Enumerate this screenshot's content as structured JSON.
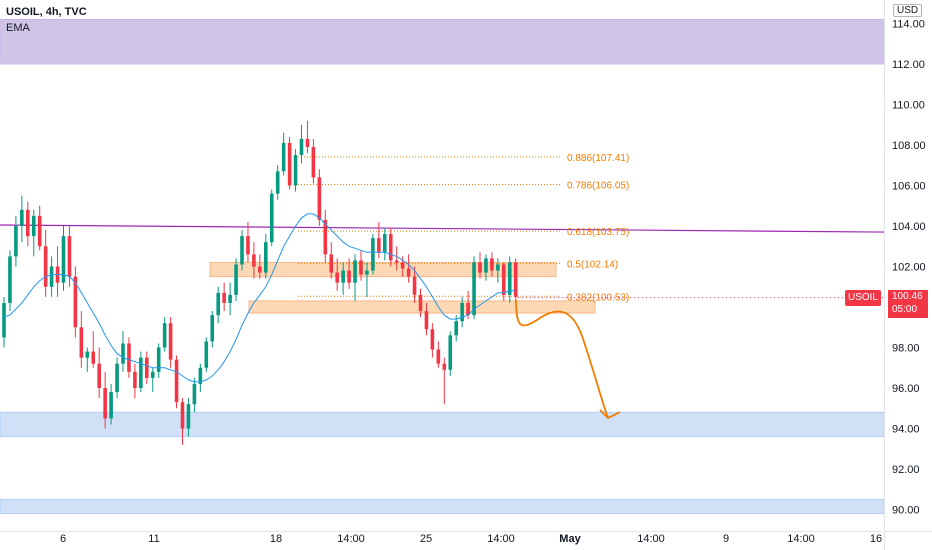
{
  "header": {
    "symbol": "USOIL, 4h, TVC",
    "indicator": "EMA",
    "currency": "USD"
  },
  "price_tag": {
    "symbol": "USOIL",
    "price": "100.46",
    "countdown": "05:00"
  },
  "colors": {
    "up": "#089981",
    "down": "#f23645",
    "ema": "#2196f3",
    "trendline": "#9c27b0",
    "fib": "#f57c00",
    "resistance_zone": "#d1c4e9",
    "support_zone": "#cfe0f7",
    "fib_zone": "#fcd8b4"
  },
  "chart_data": {
    "type": "candlestick",
    "symbol": "USOIL",
    "timeframe": "4h",
    "source": "TVC",
    "y_axis": {
      "min": 89,
      "max": 115,
      "ticks": [
        "114.00",
        "112.00",
        "110.00",
        "108.00",
        "106.00",
        "104.00",
        "102.00",
        "100.00",
        "98.00",
        "96.00",
        "94.00",
        "92.00",
        "90.00"
      ]
    },
    "x_axis": {
      "ticks": [
        "6",
        "11",
        "18",
        "14:00",
        "25",
        "14:00",
        "May",
        "14:00",
        "9",
        "14:00",
        "16"
      ]
    },
    "candles": [
      [
        98.5,
        100.5,
        98.0,
        100.2
      ],
      [
        100.2,
        102.8,
        99.8,
        102.5
      ],
      [
        102.5,
        104.5,
        102.0,
        104.0
      ],
      [
        104.0,
        105.5,
        103.2,
        104.8
      ],
      [
        104.8,
        105.2,
        103.0,
        103.5
      ],
      [
        103.5,
        104.8,
        102.5,
        104.5
      ],
      [
        104.5,
        105.0,
        102.8,
        103.0
      ],
      [
        103.0,
        103.8,
        100.5,
        101.0
      ],
      [
        101.0,
        102.5,
        100.5,
        102.0
      ],
      [
        102.0,
        103.0,
        100.5,
        101.2
      ],
      [
        101.2,
        104.0,
        100.8,
        103.5
      ],
      [
        103.5,
        104.0,
        101.0,
        101.5
      ],
      [
        101.5,
        102.0,
        98.5,
        99.0
      ],
      [
        99.0,
        99.8,
        97.0,
        97.5
      ],
      [
        97.5,
        98.0,
        96.8,
        97.8
      ],
      [
        97.8,
        98.8,
        97.0,
        97.2
      ],
      [
        97.2,
        98.0,
        95.5,
        96.0
      ],
      [
        96.0,
        96.8,
        94.0,
        94.5
      ],
      [
        94.5,
        96.2,
        94.2,
        95.8
      ],
      [
        95.8,
        97.5,
        95.5,
        97.2
      ],
      [
        97.2,
        98.8,
        96.8,
        98.2
      ],
      [
        98.2,
        98.5,
        96.5,
        96.8
      ],
      [
        96.8,
        97.2,
        95.5,
        96.0
      ],
      [
        96.0,
        97.8,
        95.8,
        97.5
      ],
      [
        97.5,
        97.8,
        96.2,
        96.5
      ],
      [
        96.5,
        97.0,
        95.8,
        96.8
      ],
      [
        96.8,
        98.2,
        96.5,
        98.0
      ],
      [
        98.0,
        99.5,
        97.8,
        99.2
      ],
      [
        99.2,
        99.5,
        97.0,
        97.4
      ],
      [
        97.4,
        97.6,
        95.0,
        95.3
      ],
      [
        95.3,
        95.5,
        93.2,
        94.0
      ],
      [
        94.0,
        95.5,
        93.6,
        95.2
      ],
      [
        95.2,
        96.5,
        94.8,
        96.2
      ],
      [
        96.2,
        97.2,
        95.8,
        97.0
      ],
      [
        97.0,
        98.5,
        96.8,
        98.3
      ],
      [
        98.3,
        99.8,
        98.0,
        99.6
      ],
      [
        99.6,
        101.0,
        99.2,
        100.7
      ],
      [
        100.7,
        101.2,
        99.8,
        100.2
      ],
      [
        100.2,
        101.2,
        99.6,
        100.6
      ],
      [
        100.6,
        102.4,
        100.3,
        102.1
      ],
      [
        102.1,
        103.8,
        101.8,
        103.5
      ],
      [
        103.5,
        104.2,
        102.2,
        102.6
      ],
      [
        102.6,
        103.2,
        101.4,
        102.0
      ],
      [
        102.0,
        102.6,
        101.4,
        101.7
      ],
      [
        101.7,
        103.6,
        101.4,
        103.2
      ],
      [
        103.2,
        105.8,
        103.0,
        105.6
      ],
      [
        105.6,
        107.0,
        105.3,
        106.7
      ],
      [
        106.7,
        108.6,
        106.5,
        108.1
      ],
      [
        108.1,
        108.4,
        105.8,
        106.0
      ],
      [
        106.0,
        107.8,
        105.7,
        107.5
      ],
      [
        107.5,
        109.0,
        107.1,
        108.3
      ],
      [
        108.3,
        109.2,
        107.6,
        107.9
      ],
      [
        107.9,
        108.3,
        106.1,
        106.4
      ],
      [
        106.4,
        106.8,
        104.0,
        104.3
      ],
      [
        104.3,
        104.8,
        102.2,
        102.6
      ],
      [
        102.6,
        103.2,
        101.4,
        101.7
      ],
      [
        101.7,
        102.4,
        100.8,
        101.2
      ],
      [
        101.2,
        102.2,
        100.6,
        101.8
      ],
      [
        101.8,
        102.4,
        100.9,
        101.2
      ],
      [
        101.2,
        102.6,
        100.3,
        102.3
      ],
      [
        102.3,
        102.8,
        101.3,
        101.6
      ],
      [
        101.6,
        102.2,
        100.5,
        101.8
      ],
      [
        101.8,
        103.6,
        101.6,
        103.4
      ],
      [
        103.4,
        104.2,
        102.4,
        102.7
      ],
      [
        102.7,
        103.9,
        102.3,
        103.6
      ],
      [
        103.6,
        103.9,
        102.0,
        102.3
      ],
      [
        102.3,
        103.0,
        101.8,
        102.2
      ],
      [
        102.2,
        102.5,
        101.5,
        101.9
      ],
      [
        101.9,
        102.6,
        101.2,
        101.5
      ],
      [
        101.5,
        102.0,
        100.2,
        100.6
      ],
      [
        100.6,
        100.9,
        99.5,
        99.8
      ],
      [
        99.8,
        100.2,
        98.6,
        98.9
      ],
      [
        98.9,
        99.2,
        97.5,
        97.9
      ],
      [
        97.9,
        98.3,
        97.0,
        97.2
      ],
      [
        97.2,
        97.5,
        95.2,
        96.9
      ],
      [
        96.9,
        98.8,
        96.6,
        98.6
      ],
      [
        98.6,
        99.6,
        98.3,
        99.3
      ],
      [
        99.3,
        100.5,
        99.0,
        100.2
      ],
      [
        100.2,
        100.8,
        99.4,
        99.6
      ],
      [
        99.6,
        102.5,
        99.4,
        102.2
      ],
      [
        102.2,
        102.7,
        101.4,
        101.7
      ],
      [
        101.7,
        102.6,
        101.3,
        102.4
      ],
      [
        102.4,
        102.7,
        101.5,
        101.8
      ],
      [
        101.8,
        102.4,
        101.2,
        102.1
      ],
      [
        102.1,
        102.2,
        100.3,
        100.6
      ],
      [
        100.6,
        102.5,
        100.2,
        102.2
      ],
      [
        102.2,
        102.4,
        100.2,
        100.5
      ]
    ],
    "ema": [
      99.5,
      99.6,
      99.9,
      100.2,
      100.6,
      101.0,
      101.3,
      101.5,
      101.6,
      101.6,
      101.6,
      101.5,
      101.2,
      100.7,
      100.2,
      99.7,
      99.2,
      98.6,
      98.1,
      97.7,
      97.5,
      97.4,
      97.3,
      97.2,
      97.1,
      97.0,
      97.0,
      97.0,
      96.9,
      96.8,
      96.6,
      96.4,
      96.3,
      96.3,
      96.4,
      96.6,
      96.9,
      97.3,
      97.8,
      98.4,
      99.1,
      99.7,
      100.2,
      100.6,
      101.0,
      101.6,
      102.3,
      103.0,
      103.5,
      104.0,
      104.4,
      104.6,
      104.6,
      104.4,
      104.1,
      103.8,
      103.5,
      103.2,
      103.0,
      102.9,
      102.8,
      102.7,
      102.7,
      102.7,
      102.7,
      102.6,
      102.5,
      102.3,
      102.1,
      101.8,
      101.4,
      101.0,
      100.5,
      100.0,
      99.6,
      99.4,
      99.4,
      99.5,
      99.6,
      99.9,
      100.1,
      100.3,
      100.5,
      100.7,
      100.7,
      100.8,
      100.8
    ],
    "trendline": {
      "from": 104.05,
      "to": 103.7,
      "color": "#9c27b0"
    },
    "fib_levels": [
      {
        "label": "0.886(107.41)",
        "price": 107.41
      },
      {
        "label": "0.786(106.05)",
        "price": 106.05
      },
      {
        "label": "0.618(103.75)",
        "price": 103.75
      },
      {
        "label": "0.5(102.14)",
        "price": 102.14
      },
      {
        "label": "0.382(100.53)",
        "price": 100.53
      }
    ],
    "zones": [
      {
        "kind": "resistance",
        "from": 112.0,
        "to": 114.2
      },
      {
        "kind": "support",
        "from": 93.6,
        "to": 94.8
      },
      {
        "kind": "support",
        "from": 89.8,
        "to": 90.5
      },
      {
        "kind": "fib",
        "from": 101.5,
        "to": 102.2
      },
      {
        "kind": "fib",
        "from": 99.7,
        "to": 100.3
      }
    ],
    "last_price": 100.46
  }
}
